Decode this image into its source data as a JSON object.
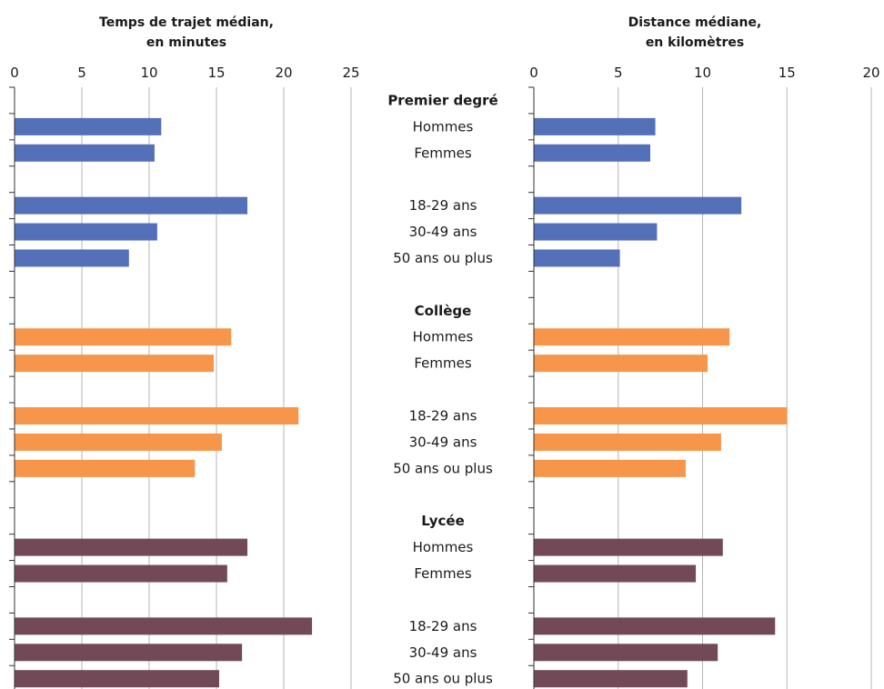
{
  "chart_data": [
    {
      "type": "bar",
      "orientation": "horizontal",
      "title_lines": [
        "Temps de trajet médian,",
        "en minutes"
      ],
      "xlim": [
        0,
        25
      ],
      "xticks": [
        0,
        5,
        10,
        15,
        20,
        25
      ],
      "grid": true,
      "categories": [
        "Premier degré",
        "Hommes",
        "Femmes",
        "",
        "18-29 ans",
        "30-49 ans",
        "50 ans ou plus",
        "",
        "Collège",
        "Hommes",
        "Femmes",
        "",
        "18-29 ans",
        "30-49 ans",
        "50 ans ou plus",
        "",
        "Lycée",
        "Hommes",
        "Femmes",
        "",
        "18-29 ans",
        "30-49 ans",
        "50 ans ou plus"
      ],
      "values": [
        null,
        10.9,
        10.4,
        null,
        17.3,
        10.6,
        8.5,
        null,
        null,
        16.1,
        14.8,
        null,
        21.1,
        15.4,
        13.4,
        null,
        null,
        17.3,
        15.8,
        null,
        22.1,
        16.9,
        15.2
      ]
    },
    {
      "type": "bar",
      "orientation": "horizontal",
      "title_lines": [
        "Distance médiane,",
        "en kilomètres"
      ],
      "xlim": [
        0,
        20
      ],
      "xticks": [
        0,
        5,
        10,
        15,
        20
      ],
      "grid": true,
      "categories": [
        "Premier degré",
        "Hommes",
        "Femmes",
        "",
        "18-29 ans",
        "30-49 ans",
        "50 ans ou plus",
        "",
        "Collège",
        "Hommes",
        "Femmes",
        "",
        "18-29 ans",
        "30-49 ans",
        "50 ans ou plus",
        "",
        "Lycée",
        "Hommes",
        "Femmes",
        "",
        "18-29 ans",
        "30-49 ans",
        "50 ans ou plus"
      ],
      "values": [
        null,
        7.2,
        6.9,
        null,
        12.3,
        7.3,
        5.1,
        null,
        null,
        11.6,
        10.3,
        null,
        15.0,
        11.1,
        9.0,
        null,
        null,
        11.2,
        9.6,
        null,
        14.3,
        10.9,
        9.1
      ]
    }
  ],
  "row_labels": [
    {
      "text": "Premier degré",
      "bold": true
    },
    {
      "text": "Hommes",
      "bold": false
    },
    {
      "text": "Femmes",
      "bold": false
    },
    {
      "text": "",
      "bold": false
    },
    {
      "text": "18-29 ans",
      "bold": false
    },
    {
      "text": "30-49 ans",
      "bold": false
    },
    {
      "text": "50 ans ou plus",
      "bold": false
    },
    {
      "text": "",
      "bold": false
    },
    {
      "text": "Collège",
      "bold": true
    },
    {
      "text": "Hommes",
      "bold": false
    },
    {
      "text": "Femmes",
      "bold": false
    },
    {
      "text": "",
      "bold": false
    },
    {
      "text": "18-29 ans",
      "bold": false
    },
    {
      "text": "30-49 ans",
      "bold": false
    },
    {
      "text": "50 ans ou plus",
      "bold": false
    },
    {
      "text": "",
      "bold": false
    },
    {
      "text": "Lycée",
      "bold": true
    },
    {
      "text": "Hommes",
      "bold": false
    },
    {
      "text": "Femmes",
      "bold": false
    },
    {
      "text": "",
      "bold": false
    },
    {
      "text": "18-29 ans",
      "bold": false
    },
    {
      "text": "30-49 ans",
      "bold": false
    },
    {
      "text": "50 ans ou plus",
      "bold": false
    }
  ],
  "groups": [
    {
      "name": "Premier degré",
      "color": "#5470b8"
    },
    {
      "name": "Collège",
      "color": "#f7964a"
    },
    {
      "name": "Lycée",
      "color": "#724a57"
    }
  ]
}
